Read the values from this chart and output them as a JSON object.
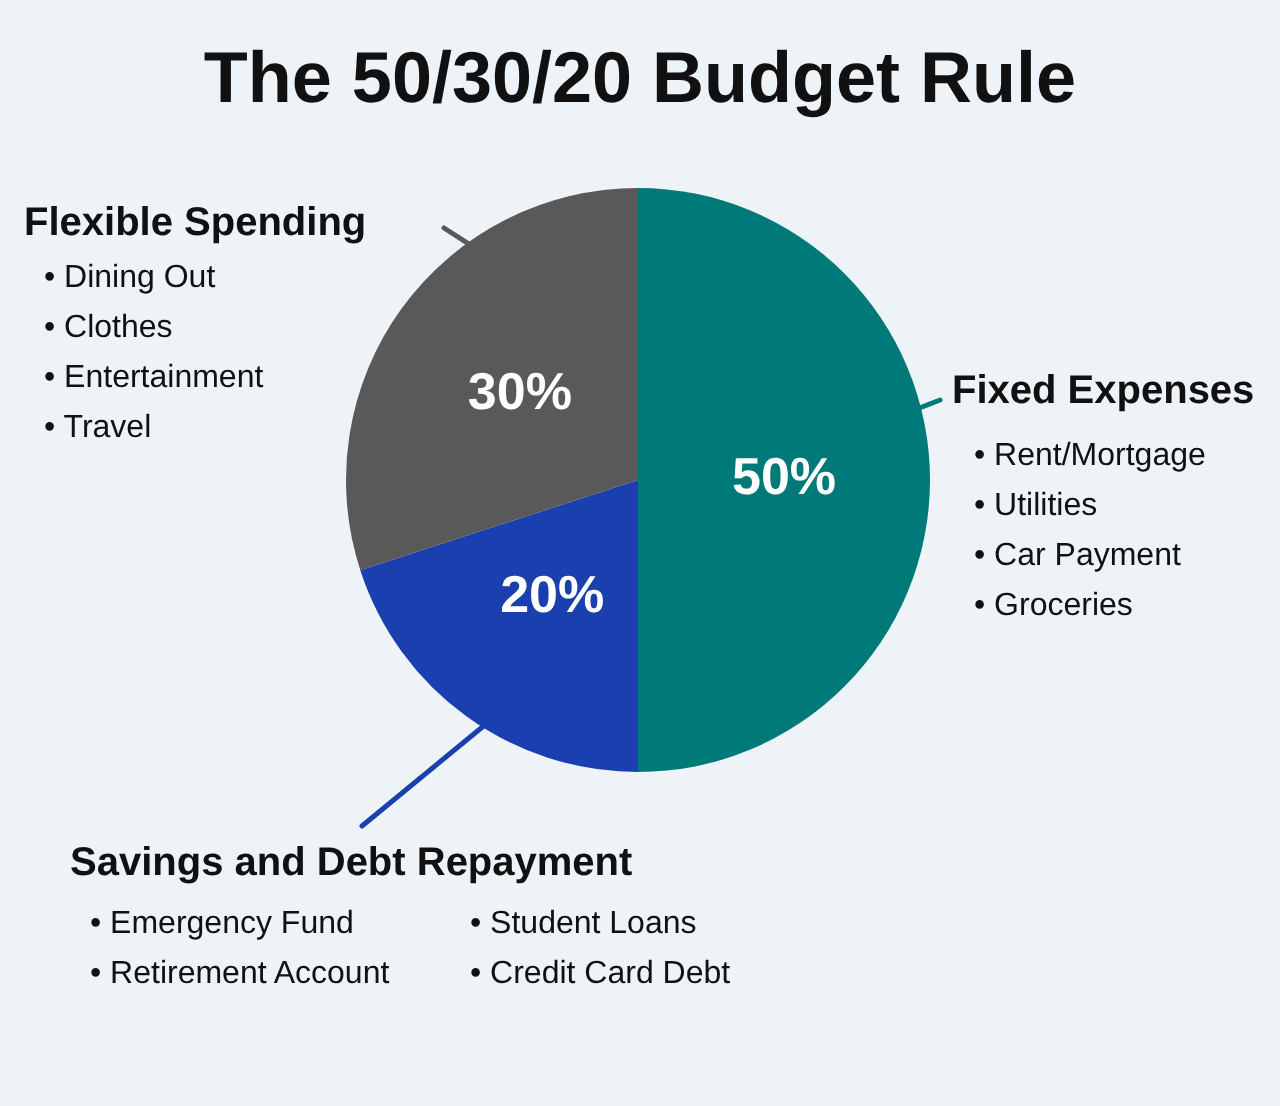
{
  "chart_data": {
    "type": "pie",
    "title": "The 50/30/20 Budget Rule",
    "categories": [
      "Fixed Expenses",
      "Savings and Debt Repayment",
      "Flexible Spending"
    ],
    "values": [
      50,
      20,
      30
    ],
    "colors": [
      "#007a78",
      "#1a3fae",
      "#595959"
    ],
    "value_labels": [
      "50%",
      "20%",
      "30%"
    ],
    "legend": "left",
    "annotations": [
      "• Rent/Mortgage",
      "• Utilities",
      "• Car Payment",
      "• Groceries",
      "• Emergency Fund",
      "• Student Loans",
      "• Retirement Account",
      "• Credit Card Debt",
      "• Dining Out",
      "• Clothes",
      "• Entertainment",
      "• Travel"
    ]
  }
}
